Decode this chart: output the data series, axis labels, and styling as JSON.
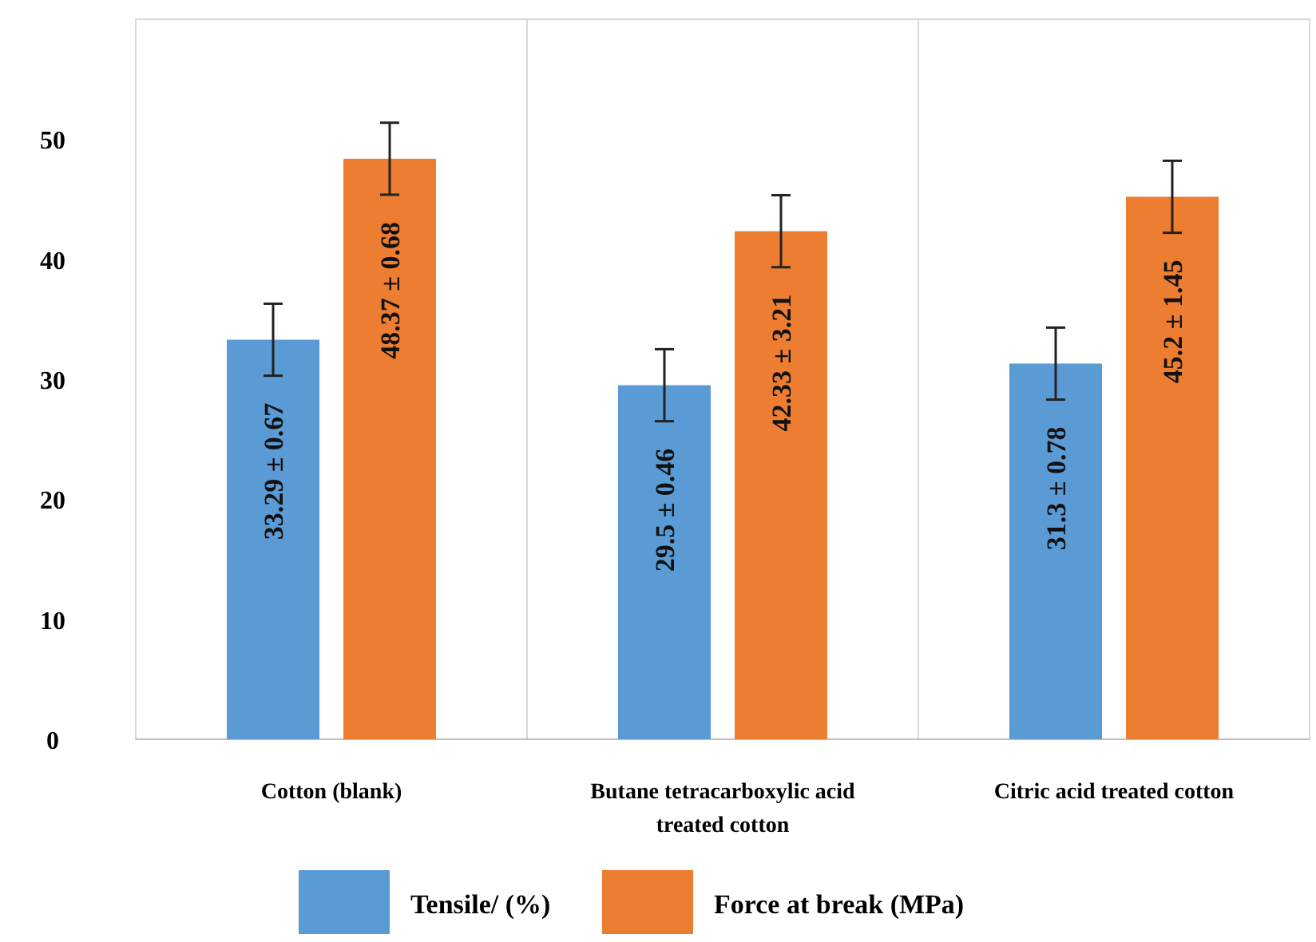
{
  "chart_data": {
    "type": "bar",
    "categories": [
      "Cotton (blank)",
      "Butane tetracarboxylic acid treated cotton",
      "Citric acid treated cotton"
    ],
    "series": [
      {
        "name": "Tensile/ (%)",
        "color": "#5b9bd5",
        "values": [
          33.29,
          29.5,
          31.3
        ],
        "errors": [
          3,
          3,
          3
        ],
        "value_labels": [
          "33.29 ± 0.67",
          "29.5 ± 0.46",
          "31.3 ± 0.78"
        ]
      },
      {
        "name": "Force at break (MPa)",
        "color": "#ed7d31",
        "values": [
          48.37,
          42.33,
          45.2
        ],
        "errors": [
          3,
          3,
          3
        ],
        "value_labels": [
          "48.37 ± 0.68",
          "42.33 ± 3.21",
          "45.2 ± 1.45"
        ]
      }
    ],
    "ylim": [
      0,
      60
    ],
    "yticks": [
      0,
      10,
      20,
      30,
      40,
      50
    ],
    "grid": "x",
    "legend": "bottom"
  }
}
